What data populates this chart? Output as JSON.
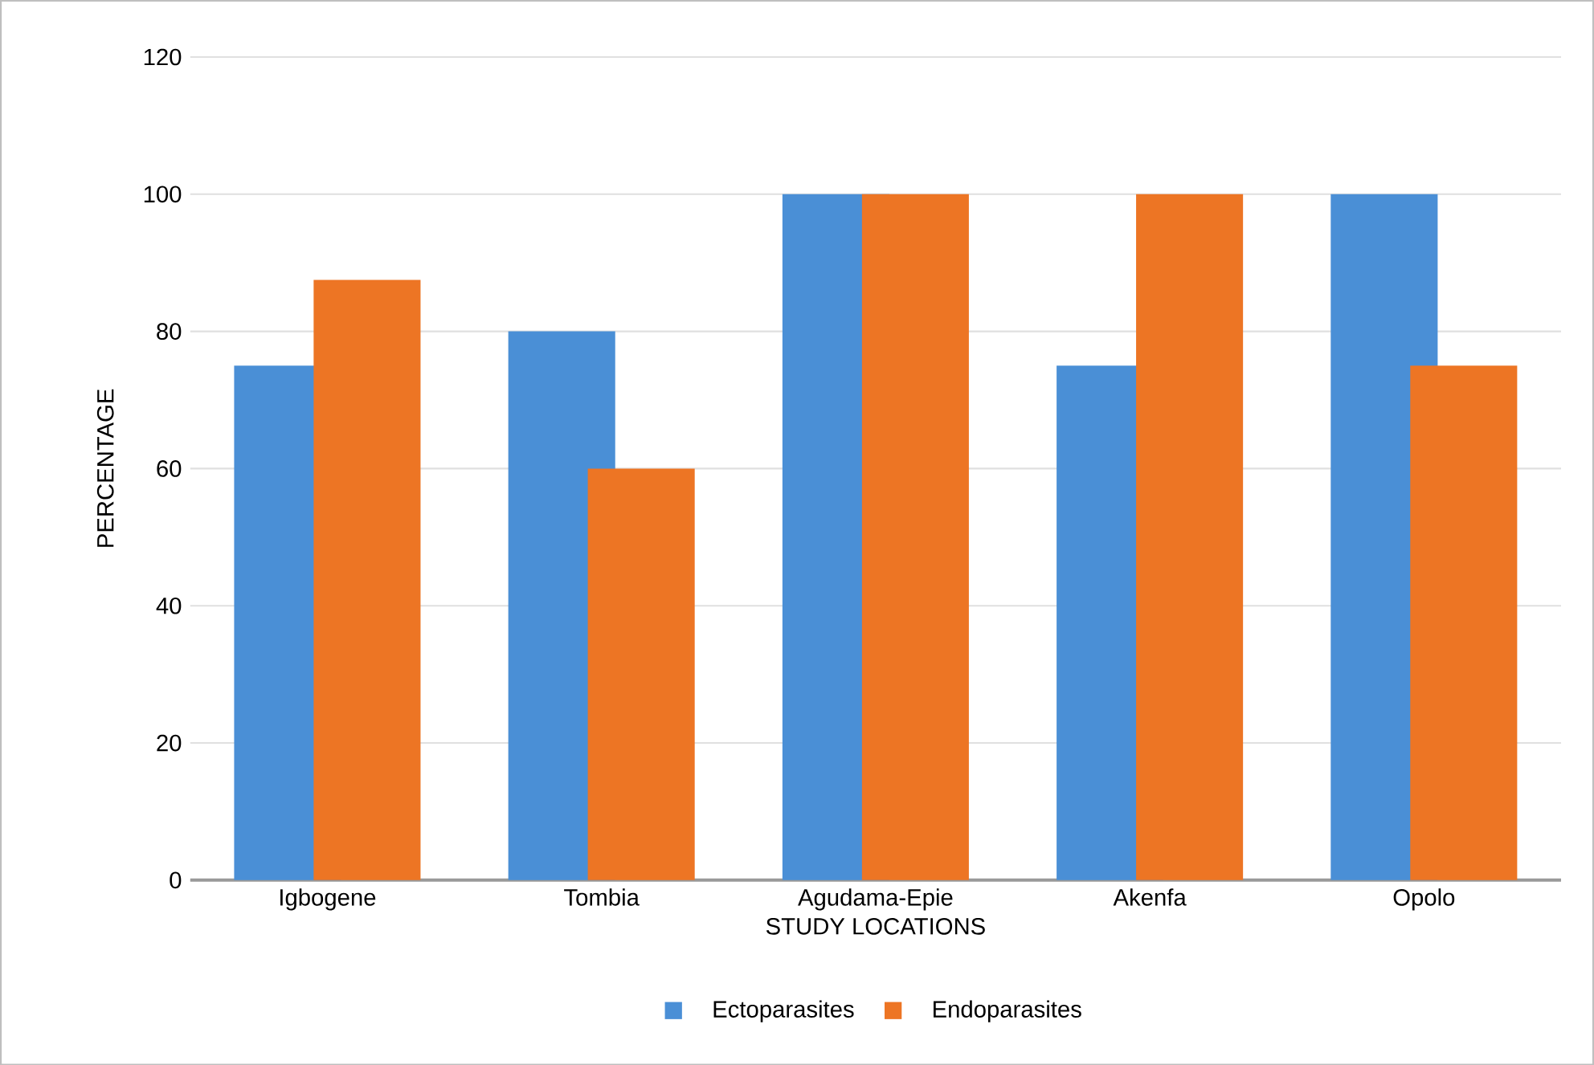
{
  "chart_data": {
    "type": "bar",
    "xlabel": "STUDY LOCATIONS",
    "ylabel": "PERCENTAGE",
    "categories": [
      "Igbogene",
      "Tombia",
      "Agudama-Epie",
      "Akenfa",
      "Opolo"
    ],
    "series": [
      {
        "name": "Ectoparasites",
        "color": "#4a8fd6",
        "values": [
          75,
          80,
          100,
          75,
          100
        ]
      },
      {
        "name": "Endoparasites",
        "color": "#ed7524",
        "values": [
          87.5,
          60,
          100,
          100,
          75
        ]
      }
    ],
    "ylim": [
      0,
      120
    ],
    "yticks": [
      0,
      20,
      40,
      60,
      80,
      100,
      120
    ],
    "grid": "y",
    "legend": "bottom"
  }
}
